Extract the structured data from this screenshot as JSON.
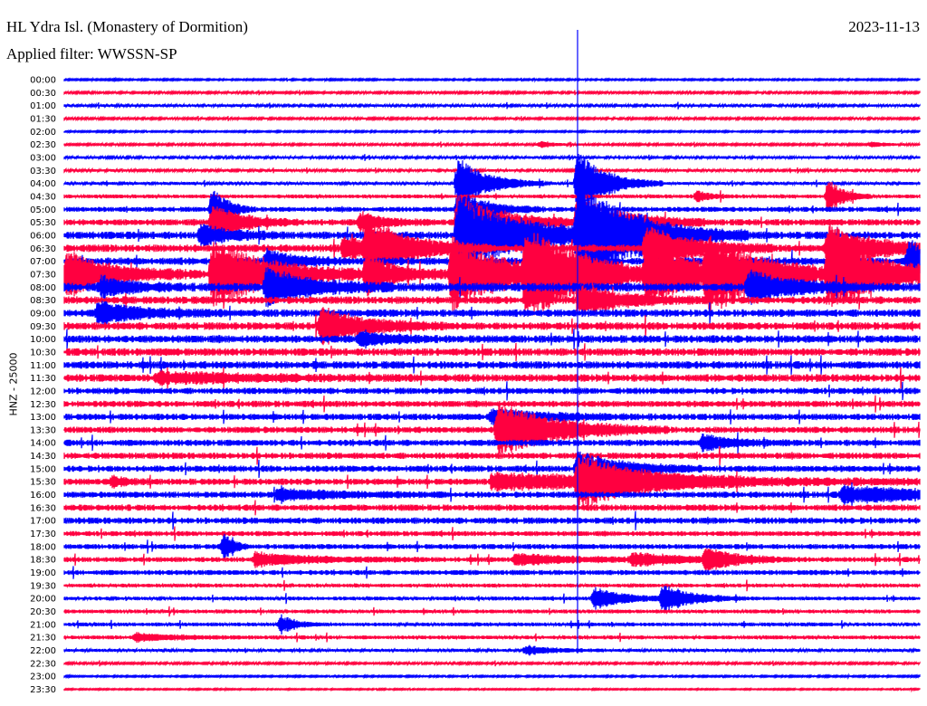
{
  "header": {
    "title": "HL Ydra Isl. (Monastery of Dormition)",
    "filter": "Applied filter: WWSSN-SP",
    "date": "2023-11-13"
  },
  "chart_data": {
    "type": "line",
    "title": "HL Ydra Isl. (Monastery of Dormition)",
    "ylabel": "HNZ - 25000",
    "minutes_per_row": 30,
    "colors": [
      "#0000ff",
      "#ff0040"
    ],
    "row_labels": [
      "00:00",
      "00:30",
      "01:00",
      "01:30",
      "02:00",
      "02:30",
      "03:00",
      "03:30",
      "04:00",
      "04:30",
      "05:00",
      "05:30",
      "06:00",
      "06:30",
      "07:00",
      "07:30",
      "08:00",
      "08:30",
      "09:00",
      "09:30",
      "10:00",
      "10:30",
      "11:00",
      "11:30",
      "12:00",
      "12:30",
      "13:00",
      "13:30",
      "14:00",
      "14:30",
      "15:00",
      "15:30",
      "16:00",
      "16:30",
      "17:00",
      "17:30",
      "18:00",
      "18:30",
      "19:00",
      "19:30",
      "20:00",
      "20:30",
      "21:00",
      "21:30",
      "22:00",
      "22:30",
      "23:00",
      "23:30"
    ],
    "noise_level": [
      0.6,
      0.8,
      1,
      0.8,
      0.6,
      0.8,
      1,
      1,
      1.2,
      1.5,
      2,
      2.5,
      3,
      3,
      3,
      3.5,
      3.5,
      3,
      3,
      3,
      3,
      3,
      3,
      3,
      2.5,
      2.5,
      2.5,
      2.5,
      2.5,
      2.5,
      2.5,
      2.5,
      2.5,
      2.5,
      2.5,
      2,
      2,
      2,
      2,
      1.5,
      1.5,
      1.5,
      1.5,
      1.5,
      1.2,
      0.8,
      0.6,
      0.5
    ],
    "events": [
      {
        "row": 5,
        "minute": 16.7,
        "amp": 4,
        "dur": 0.5
      },
      {
        "row": 5,
        "minute": 28.3,
        "amp": 3,
        "dur": 0.5
      },
      {
        "row": 8,
        "minute": 13.8,
        "amp": 30,
        "dur": 1
      },
      {
        "row": 8,
        "minute": 18.0,
        "amp": 35,
        "dur": 1
      },
      {
        "row": 9,
        "minute": 22.2,
        "amp": 6,
        "dur": 0.5
      },
      {
        "row": 9,
        "minute": 26.8,
        "amp": 20,
        "dur": 0.5
      },
      {
        "row": 10,
        "minute": 5.2,
        "amp": 25,
        "dur": 0.5
      },
      {
        "row": 10,
        "minute": 13.8,
        "amp": 20,
        "dur": 1
      },
      {
        "row": 11,
        "minute": 5.2,
        "amp": 20,
        "dur": 1
      },
      {
        "row": 11,
        "minute": 13.8,
        "amp": 30,
        "dur": 1.5
      },
      {
        "row": 11,
        "minute": 18.0,
        "amp": 30,
        "dur": 1.5
      },
      {
        "row": 11,
        "minute": 10.4,
        "amp": 10,
        "dur": 0.8
      },
      {
        "row": 12,
        "minute": 4.8,
        "amp": 12,
        "dur": 1
      },
      {
        "row": 12,
        "minute": 13.8,
        "amp": 40,
        "dur": 2.5
      },
      {
        "row": 12,
        "minute": 18.0,
        "amp": 55,
        "dur": 2
      },
      {
        "row": 13,
        "minute": 10.6,
        "amp": 30,
        "dur": 1.5
      },
      {
        "row": 13,
        "minute": 9.8,
        "amp": 12,
        "dur": 1
      },
      {
        "row": 13,
        "minute": 20.4,
        "amp": 25,
        "dur": 1.5
      },
      {
        "row": 13,
        "minute": 26.8,
        "amp": 25,
        "dur": 1.5
      },
      {
        "row": 14,
        "minute": 29.6,
        "amp": 22,
        "dur": 1.5
      },
      {
        "row": 14,
        "minute": 7.1,
        "amp": 12,
        "dur": 1
      },
      {
        "row": 15,
        "minute": 0.1,
        "amp": 25,
        "dur": 1.5
      },
      {
        "row": 15,
        "minute": 5.2,
        "amp": 35,
        "dur": 2
      },
      {
        "row": 15,
        "minute": 13.6,
        "amp": 40,
        "dur": 2
      },
      {
        "row": 15,
        "minute": 16.2,
        "amp": 45,
        "dur": 2
      },
      {
        "row": 15,
        "minute": 20.4,
        "amp": 30,
        "dur": 2
      },
      {
        "row": 15,
        "minute": 22.5,
        "amp": 35,
        "dur": 2
      },
      {
        "row": 15,
        "minute": 26.8,
        "amp": 35,
        "dur": 2
      },
      {
        "row": 15,
        "minute": 10.6,
        "amp": 20,
        "dur": 1
      },
      {
        "row": 16,
        "minute": 7.1,
        "amp": 20,
        "dur": 1.5
      },
      {
        "row": 16,
        "minute": 24.0,
        "amp": 18,
        "dur": 1.5
      },
      {
        "row": 16,
        "minute": 1.3,
        "amp": 10,
        "dur": 1
      },
      {
        "row": 17,
        "minute": 18.1,
        "amp": 15,
        "dur": 1.5
      },
      {
        "row": 18,
        "minute": 1.2,
        "amp": 12,
        "dur": 1.5
      },
      {
        "row": 19,
        "minute": 9.0,
        "amp": 20,
        "dur": 1.5
      },
      {
        "row": 20,
        "minute": 10.4,
        "amp": 8,
        "dur": 1
      },
      {
        "row": 23,
        "minute": 3.3,
        "amp": 6,
        "dur": 3
      },
      {
        "row": 26,
        "minute": 15.0,
        "amp": 8,
        "dur": 2
      },
      {
        "row": 27,
        "minute": 15.2,
        "amp": 30,
        "dur": 2
      },
      {
        "row": 28,
        "minute": 22.4,
        "amp": 8,
        "dur": 1
      },
      {
        "row": 30,
        "minute": 18.0,
        "amp": 20,
        "dur": 1.5
      },
      {
        "row": 31,
        "minute": 15.0,
        "amp": 8,
        "dur": 8
      },
      {
        "row": 31,
        "minute": 18.0,
        "amp": 25,
        "dur": 2
      },
      {
        "row": 31,
        "minute": 1.7,
        "amp": 6,
        "dur": 0.5
      },
      {
        "row": 32,
        "minute": 27.3,
        "amp": 8,
        "dur": 5
      },
      {
        "row": 32,
        "minute": 7.5,
        "amp": 6,
        "dur": 2
      },
      {
        "row": 36,
        "minute": 5.6,
        "amp": 16,
        "dur": 0.3
      },
      {
        "row": 37,
        "minute": 6.7,
        "amp": 7,
        "dur": 2
      },
      {
        "row": 37,
        "minute": 15.8,
        "amp": 6,
        "dur": 2
      },
      {
        "row": 37,
        "minute": 19.9,
        "amp": 6,
        "dur": 2
      },
      {
        "row": 37,
        "minute": 22.5,
        "amp": 12,
        "dur": 1
      },
      {
        "row": 40,
        "minute": 18.6,
        "amp": 12,
        "dur": 1
      },
      {
        "row": 40,
        "minute": 21.0,
        "amp": 15,
        "dur": 1
      },
      {
        "row": 42,
        "minute": 7.6,
        "amp": 10,
        "dur": 0.5
      },
      {
        "row": 43,
        "minute": 2.5,
        "amp": 4,
        "dur": 1.5
      },
      {
        "row": 44,
        "minute": 16.2,
        "amp": 5,
        "dur": 1
      }
    ],
    "spike": {
      "minute": 18.0,
      "row": 31
    }
  }
}
